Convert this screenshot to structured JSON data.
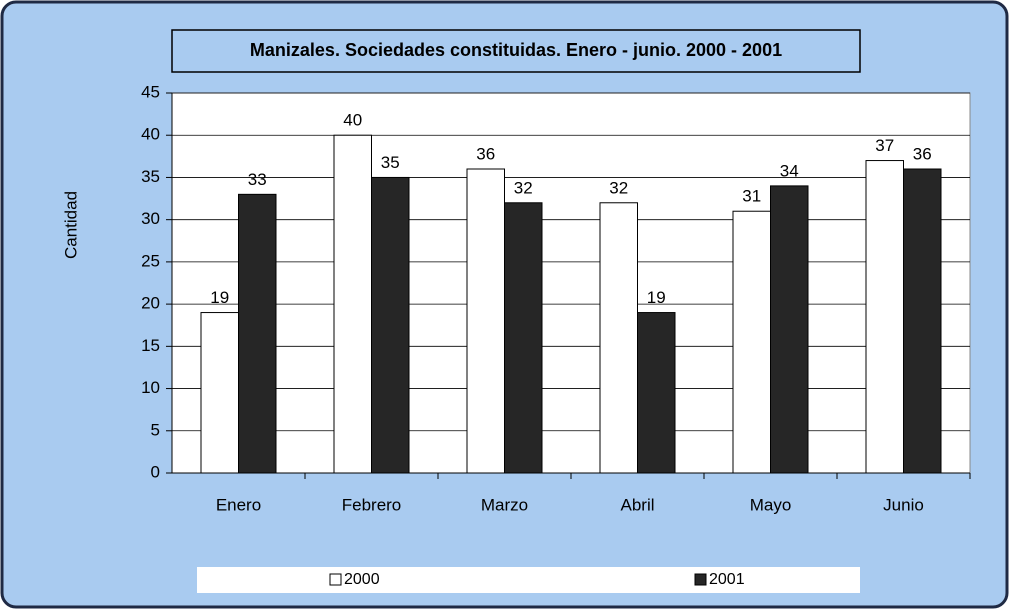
{
  "chart_data": {
    "type": "bar",
    "title": "Manizales. Sociedades constituidas. Enero - junio. 2000 - 2001",
    "y_label": "Cantidad",
    "categories": [
      "Enero",
      "Febrero",
      "Marzo",
      "Abril",
      "Mayo",
      "Junio"
    ],
    "series": [
      {
        "name": "2000",
        "color": "#ffffff",
        "values": [
          19,
          40,
          36,
          32,
          31,
          37
        ]
      },
      {
        "name": "2001",
        "color": "#262626",
        "values": [
          33,
          35,
          32,
          19,
          34,
          36
        ]
      }
    ],
    "ylim": [
      0,
      45
    ],
    "yticks": [
      0,
      5,
      10,
      15,
      20,
      25,
      30,
      35,
      40,
      45
    ],
    "grid": true,
    "legend": "bottom"
  }
}
